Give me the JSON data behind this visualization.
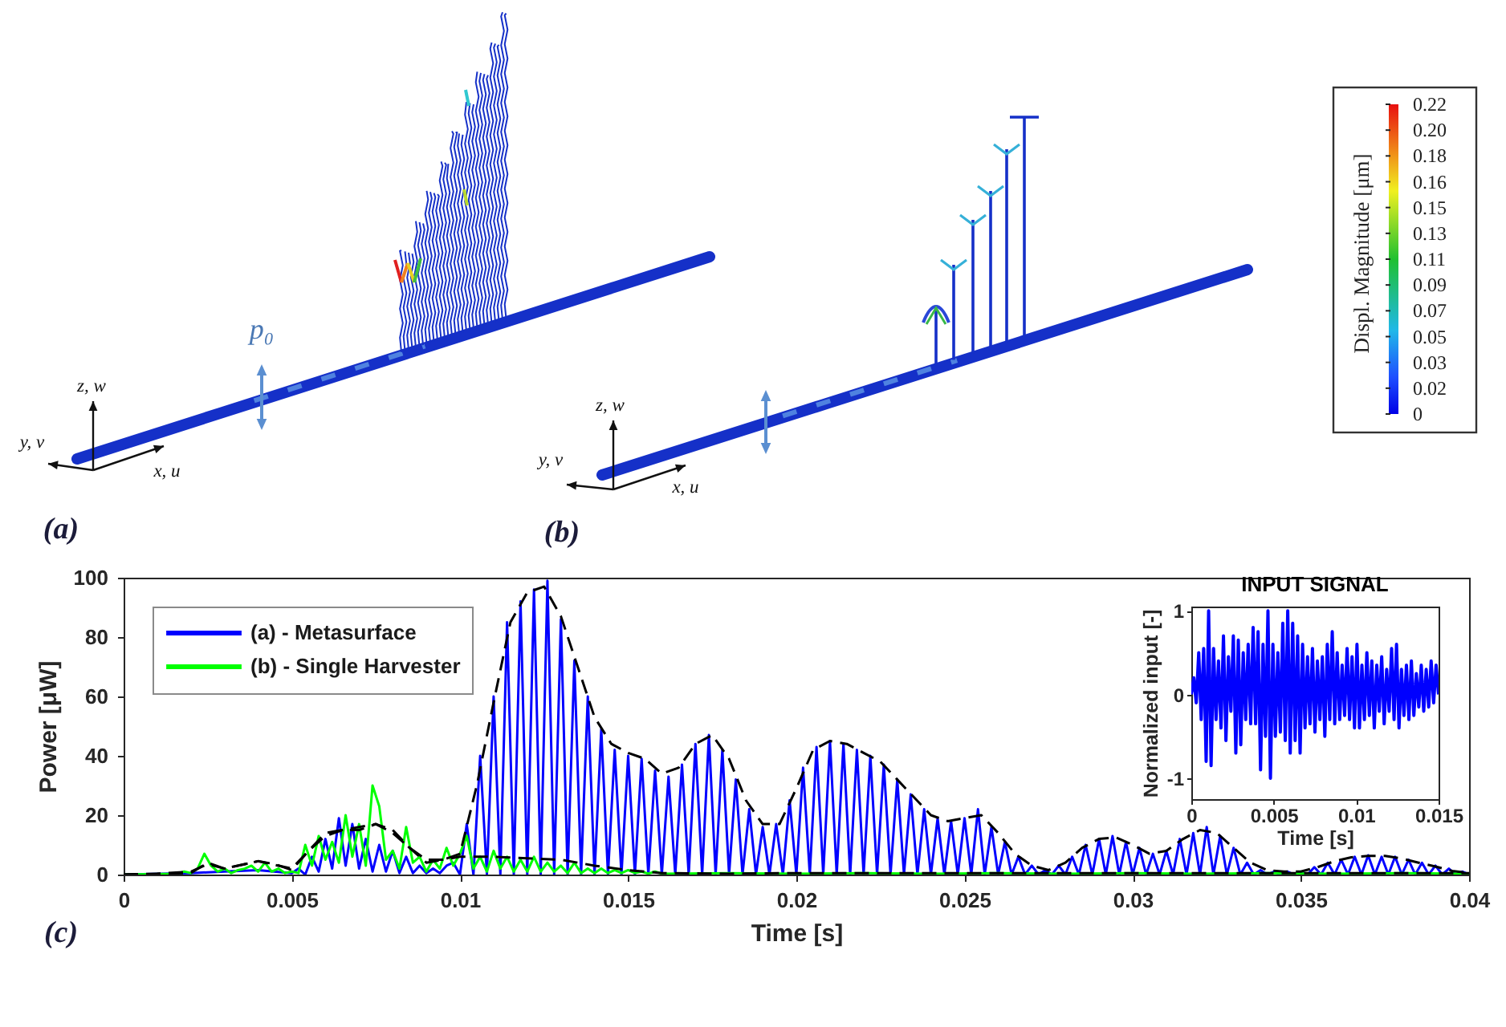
{
  "chart_data": [
    {
      "type": "other",
      "annotations": [
        "(a)",
        "p₀",
        "z, w",
        "y, v",
        "x, u",
        "(b)",
        "z, w",
        "y, v",
        "x, u",
        "0.22",
        "0.20",
        "0.18",
        "0.16",
        "0.15",
        "0.13",
        "0.11",
        "0.09",
        "0.07",
        "0.05",
        "0.03",
        "0.02",
        "0"
      ],
      "clabel": "Displ. Magnitude [μm]"
    },
    {
      "type": "line",
      "xlabel": "Time [s]",
      "ylabel": "Power [μW]",
      "xlim": [
        0,
        0.04
      ],
      "xticks": [
        0,
        0.005,
        0.01,
        0.015,
        0.02,
        0.025,
        0.03,
        0.035,
        0.04
      ],
      "ylim": [
        0,
        100
      ],
      "yticks": [
        0,
        20,
        40,
        60,
        80,
        100
      ],
      "legend": "top left",
      "annotations": [
        "(c)"
      ],
      "series": [
        {
          "name": "(a) - Metasurface",
          "color": "#0000ff",
          "x": [
            0,
            0.002,
            0.003,
            0.004,
            0.005,
            0.0052,
            0.0054,
            0.0056,
            0.0058,
            0.006,
            0.0062,
            0.0064,
            0.0066,
            0.0068,
            0.007,
            0.0072,
            0.0074,
            0.0076,
            0.0078,
            0.008,
            0.0082,
            0.0084,
            0.0086,
            0.0088,
            0.009,
            0.0092,
            0.0094,
            0.0096,
            0.0098,
            0.01,
            0.0102,
            0.0104,
            0.0106,
            0.0108,
            0.011,
            0.0112,
            0.0114,
            0.0116,
            0.0118,
            0.012,
            0.0122,
            0.0124,
            0.0126,
            0.0128,
            0.013,
            0.0132,
            0.0134,
            0.0136,
            0.0138,
            0.014,
            0.0142,
            0.0144,
            0.0146,
            0.0148,
            0.015,
            0.0152,
            0.0154,
            0.0156,
            0.0158,
            0.016,
            0.0162,
            0.0164,
            0.0166,
            0.0168,
            0.017,
            0.0172,
            0.0174,
            0.0176,
            0.0178,
            0.018,
            0.0182,
            0.0184,
            0.0186,
            0.0188,
            0.019,
            0.0192,
            0.0194,
            0.0196,
            0.0198,
            0.02,
            0.0202,
            0.0204,
            0.0206,
            0.0208,
            0.021,
            0.0212,
            0.0214,
            0.0216,
            0.0218,
            0.022,
            0.0222,
            0.0224,
            0.0226,
            0.0228,
            0.023,
            0.0232,
            0.0234,
            0.0236,
            0.0238,
            0.024,
            0.0242,
            0.0244,
            0.0246,
            0.0248,
            0.025,
            0.0252,
            0.0254,
            0.0256,
            0.0258,
            0.026,
            0.0262,
            0.0264,
            0.0266,
            0.0268,
            0.027,
            0.0272,
            0.0274,
            0.0276,
            0.0278,
            0.028,
            0.0282,
            0.0284,
            0.0286,
            0.0288,
            0.029,
            0.0292,
            0.0294,
            0.0296,
            0.0298,
            0.03,
            0.0302,
            0.0304,
            0.0306,
            0.0308,
            0.031,
            0.0312,
            0.0314,
            0.0316,
            0.0318,
            0.032,
            0.0322,
            0.0324,
            0.0326,
            0.0328,
            0.033,
            0.0332,
            0.0334,
            0.0336,
            0.0338,
            0.034,
            0.0342,
            0.0344,
            0.0346,
            0.0348,
            0.035,
            0.0352,
            0.0354,
            0.0356,
            0.0358,
            0.036,
            0.0362,
            0.0364,
            0.0366,
            0.0368,
            0.037,
            0.0372,
            0.0374,
            0.0376,
            0.0378,
            0.038,
            0.0382,
            0.0384,
            0.0386,
            0.0388,
            0.039,
            0.0392,
            0.0394,
            0.0396,
            0.0398,
            0.04
          ],
          "values": [
            0,
            0.5,
            1,
            1.5,
            0.5,
            2,
            0,
            6,
            1,
            12,
            2,
            19,
            3,
            17,
            2,
            12,
            1,
            10,
            1,
            8,
            0.5,
            6,
            0.5,
            3,
            0.5,
            2,
            0.5,
            3,
            4,
            0,
            17,
            0,
            40,
            0,
            60,
            0,
            85,
            0,
            92,
            0,
            96,
            0,
            99,
            0,
            86,
            0,
            72,
            0,
            60,
            0,
            49,
            0,
            42,
            0,
            40,
            0,
            39,
            0,
            35,
            0,
            33,
            0,
            37,
            0,
            44,
            0,
            47,
            0,
            42,
            0,
            32,
            0,
            22,
            0,
            16,
            0,
            17,
            0,
            25,
            0,
            36,
            0,
            43,
            0,
            45,
            0,
            44,
            0,
            42,
            0,
            40,
            0,
            37,
            0,
            32,
            0,
            27,
            0,
            22,
            0,
            19,
            0,
            18,
            0,
            19,
            0,
            22,
            0,
            16,
            0,
            11,
            0,
            6,
            0,
            3,
            0,
            1.5,
            0,
            3,
            0,
            6,
            0,
            10,
            0,
            12,
            0,
            13,
            0,
            11,
            0,
            9,
            0,
            7,
            0,
            8,
            0,
            12,
            0,
            14,
            0,
            16,
            0,
            13,
            0,
            9,
            0,
            4,
            0,
            1.5,
            0,
            1,
            0,
            1,
            0,
            1,
            0,
            2.5,
            0,
            4,
            0,
            5,
            0,
            6,
            0,
            6.5,
            0,
            6,
            0,
            6,
            0,
            5,
            0,
            4,
            0,
            3,
            0,
            2,
            0,
            1,
            0
          ]
        },
        {
          "name": "(b) - Single Harvester",
          "color": "#00ff00",
          "x": [
            0,
            0.0016,
            0.0018,
            0.002,
            0.0022,
            0.0024,
            0.0026,
            0.0028,
            0.003,
            0.0032,
            0.0034,
            0.0036,
            0.0038,
            0.004,
            0.0042,
            0.0044,
            0.0046,
            0.0048,
            0.005,
            0.0052,
            0.0054,
            0.0056,
            0.0058,
            0.006,
            0.0062,
            0.0064,
            0.0066,
            0.0068,
            0.007,
            0.0072,
            0.0074,
            0.0076,
            0.0078,
            0.008,
            0.0082,
            0.0084,
            0.0086,
            0.0088,
            0.009,
            0.0092,
            0.0094,
            0.0096,
            0.0098,
            0.01,
            0.0102,
            0.0104,
            0.0106,
            0.0108,
            0.011,
            0.0112,
            0.0114,
            0.0116,
            0.0118,
            0.012,
            0.0122,
            0.0124,
            0.0126,
            0.0128,
            0.013,
            0.0132,
            0.0134,
            0.0136,
            0.0138,
            0.014,
            0.0142,
            0.0144,
            0.0146,
            0.0148,
            0.015,
            0.0152,
            0.0154,
            0.0156,
            0.0158,
            0.016,
            0.018,
            0.02,
            0.022,
            0.024,
            0.026,
            0.028,
            0.03,
            0.032,
            0.034,
            0.036,
            0.038,
            0.04
          ],
          "values": [
            0,
            0.3,
            1,
            0.5,
            2,
            7,
            3,
            1,
            2,
            0.5,
            1.5,
            2,
            3,
            1,
            4,
            1,
            2,
            0.5,
            1,
            0.5,
            10,
            3,
            13,
            5,
            11,
            4,
            20,
            6,
            17,
            3,
            30,
            23,
            5,
            8,
            2,
            16,
            4,
            6,
            1,
            5,
            2,
            9,
            3,
            7,
            13,
            2,
            6,
            1,
            8,
            2,
            6,
            1,
            5,
            1,
            6,
            1,
            4,
            1,
            3,
            0.5,
            4,
            0.5,
            2,
            0.5,
            2,
            0.5,
            1.5,
            0.5,
            1.5,
            0.5,
            1,
            0.3,
            1,
            0.3,
            0.5,
            0.3,
            0.5,
            0.3,
            0.5,
            0.3,
            0.5,
            0.3,
            0.5,
            0.3,
            0.5,
            0.3
          ]
        },
        {
          "color": "#000000",
          "line_style": "dashed",
          "x": [
            0,
            0.001,
            0.002,
            0.0025,
            0.003,
            0.004,
            0.0045,
            0.005,
            0.0055,
            0.006,
            0.0065,
            0.007,
            0.0075,
            0.008,
            0.0085,
            0.009,
            0.0095,
            0.01,
            0.0105,
            0.011,
            0.0115,
            0.012,
            0.0125,
            0.013,
            0.0135,
            0.014,
            0.0145,
            0.015,
            0.0155,
            0.016,
            0.0165,
            0.017,
            0.0175,
            0.018,
            0.0185,
            0.019,
            0.0195,
            0.02,
            0.0205,
            0.021,
            0.0215,
            0.022,
            0.0225,
            0.023,
            0.0235,
            0.024,
            0.0245,
            0.025,
            0.0255,
            0.026,
            0.0265,
            0.027,
            0.0275,
            0.028,
            0.0285,
            0.029,
            0.0295,
            0.03,
            0.0305,
            0.031,
            0.0315,
            0.032,
            0.0325,
            0.033,
            0.0335,
            0.034,
            0.0345,
            0.035,
            0.0355,
            0.036,
            0.0365,
            0.037,
            0.0375,
            0.038,
            0.0385,
            0.039,
            0.0395,
            0.04
          ],
          "values": [
            0,
            0.3,
            1,
            3.5,
            2,
            4.5,
            3.5,
            1.5,
            8,
            14,
            15,
            15,
            17,
            15,
            9,
            4,
            5,
            7,
            30,
            58,
            85,
            95,
            97,
            87,
            70,
            53,
            44,
            41,
            39,
            34,
            36,
            44,
            47,
            39,
            25,
            17,
            17,
            29,
            42,
            45,
            44,
            41,
            38,
            32,
            26,
            20,
            18,
            19,
            20,
            14,
            7,
            3,
            1.5,
            4,
            9,
            12,
            12.5,
            10,
            7,
            8,
            12,
            15,
            14,
            9,
            4,
            1.5,
            1,
            1,
            2.5,
            4.5,
            5.8,
            6.3,
            6.3,
            5.4,
            4,
            2.7,
            1.2,
            0.5
          ]
        },
        {
          "color": "#000000",
          "line_style": "dashed",
          "x": [
            0,
            0.002,
            0.0025,
            0.003,
            0.004,
            0.005,
            0.0055,
            0.006,
            0.0065,
            0.007,
            0.0075,
            0.008,
            0.0085,
            0.009,
            0.0095,
            0.01,
            0.011,
            0.012,
            0.013,
            0.014,
            0.015,
            0.016,
            0.018,
            0.02,
            0.025,
            0.03,
            0.035,
            0.04
          ],
          "values": [
            0,
            0.5,
            4,
            2,
            4.5,
            2,
            8,
            13,
            15,
            16,
            17,
            14,
            9,
            5,
            5,
            6,
            6,
            5.5,
            5,
            3,
            1.5,
            0.5,
            0.3,
            0.5,
            0.5,
            0.5,
            0.5,
            0.5
          ]
        }
      ]
    },
    {
      "type": "line",
      "title": "INPUT SIGNAL",
      "xlabel": "Time [s]",
      "ylabel": "Normalized input [-]",
      "xlim": [
        0,
        0.015
      ],
      "xticks": [
        0,
        0.005,
        0.01,
        0.015
      ],
      "ylim": [
        -1.25,
        1.05
      ],
      "yticks": [
        -1,
        0,
        1
      ],
      "x": [
        0,
        0.00015,
        0.0003,
        0.00045,
        0.0006,
        0.00075,
        0.0009,
        0.00105,
        0.0012,
        0.00135,
        0.0015,
        0.00165,
        0.0018,
        0.00195,
        0.0021,
        0.00225,
        0.0024,
        0.00255,
        0.0027,
        0.00285,
        0.003,
        0.00315,
        0.0033,
        0.00345,
        0.0036,
        0.00375,
        0.0039,
        0.00405,
        0.0042,
        0.00435,
        0.0045,
        0.00465,
        0.0048,
        0.00495,
        0.0051,
        0.00525,
        0.0054,
        0.00555,
        0.0057,
        0.00585,
        0.006,
        0.00615,
        0.0063,
        0.00645,
        0.0066,
        0.00675,
        0.0069,
        0.00705,
        0.0072,
        0.00735,
        0.0075,
        0.00765,
        0.0078,
        0.00795,
        0.0081,
        0.00825,
        0.0084,
        0.00855,
        0.0087,
        0.00885,
        0.009,
        0.00915,
        0.0093,
        0.00945,
        0.0096,
        0.00975,
        0.0099,
        0.01005,
        0.0102,
        0.01035,
        0.0105,
        0.01065,
        0.0108,
        0.01095,
        0.0111,
        0.01125,
        0.0114,
        0.01155,
        0.0117,
        0.01185,
        0.012,
        0.01215,
        0.0123,
        0.01245,
        0.0126,
        0.01275,
        0.0129,
        0.01305,
        0.0132,
        0.01335,
        0.0135,
        0.01365,
        0.0138,
        0.01395,
        0.0141,
        0.01425,
        0.0144,
        0.01455,
        0.0147,
        0.01485,
        0.015
      ],
      "series": [
        {
          "color": "#0000ff",
          "values": [
            0,
            0.2,
            -0.1,
            0.5,
            -0.3,
            0.55,
            -0.8,
            1,
            -0.85,
            0.55,
            -0.3,
            0.4,
            -0.4,
            0.7,
            -0.55,
            0.45,
            -0.2,
            0.7,
            -0.7,
            0.65,
            -0.6,
            0.5,
            -0.3,
            0.6,
            -0.35,
            0.8,
            -0.35,
            0.75,
            -0.9,
            0.6,
            -0.5,
            1,
            -1,
            0.6,
            -0.5,
            0.5,
            -0.45,
            0.85,
            -0.55,
            1,
            -0.7,
            0.85,
            -0.55,
            0.7,
            -0.7,
            0.6,
            -0.4,
            0.45,
            -0.35,
            0.55,
            -0.45,
            0.4,
            -0.3,
            0.45,
            -0.5,
            0.6,
            -0.3,
            0.75,
            -0.35,
            0.5,
            -0.3,
            0.35,
            -0.25,
            0.55,
            -0.3,
            0.45,
            -0.4,
            0.6,
            -0.4,
            0.35,
            -0.3,
            0.5,
            -0.25,
            0.4,
            -0.4,
            0.35,
            -0.2,
            0.45,
            -0.35,
            0.3,
            -0.2,
            0.55,
            -0.3,
            0.6,
            -0.4,
            0.3,
            -0.25,
            0.35,
            -0.3,
            0.4,
            -0.25,
            0.25,
            -0.15,
            0.35,
            -0.2,
            0.3,
            -0.15,
            0.4,
            -0.1,
            0.35,
            0
          ]
        }
      ]
    }
  ]
}
